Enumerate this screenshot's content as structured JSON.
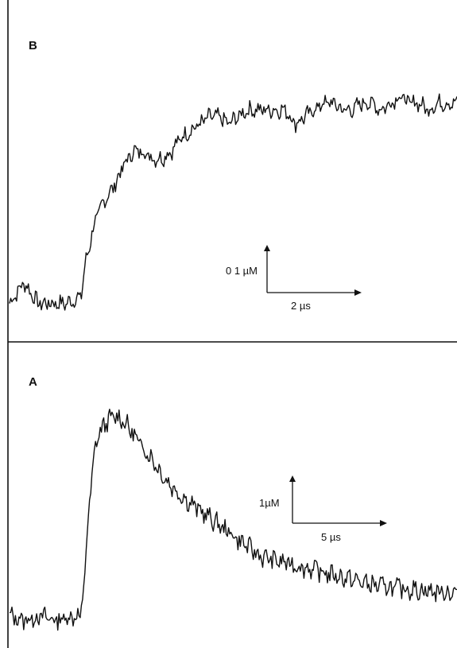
{
  "chart_data": [
    {
      "type": "line",
      "panel_label": "B",
      "xlim": [
        0,
        18.8
      ],
      "ylim": [
        -0.02,
        0.4
      ],
      "scale_bars": {
        "y": {
          "value": 0.1,
          "label": "0 1 µM"
        },
        "x": {
          "value": 2,
          "label": "2 µs"
        }
      },
      "series": [
        {
          "x": [
            0,
            0.6,
            1.2,
            1.8,
            2.4,
            3.0,
            3.2,
            3.6,
            4.0,
            4.4,
            4.8,
            5.2,
            5.6,
            6.0,
            6.4,
            6.8,
            7.2,
            7.6,
            8.0,
            8.4,
            8.8,
            9.2,
            9.6,
            10.0,
            10.4,
            10.8,
            11.2,
            11.6,
            12.0,
            12.4,
            12.8,
            13.2,
            13.6,
            14.0,
            14.4,
            14.8,
            15.2,
            15.6,
            16.0,
            16.4,
            16.8,
            17.2,
            17.6,
            18.0,
            18.4,
            18.8
          ],
          "y": [
            0.03,
            0.06,
            0.03,
            0.03,
            0.03,
            0.04,
            0.09,
            0.15,
            0.18,
            0.2,
            0.23,
            0.25,
            0.25,
            0.24,
            0.24,
            0.25,
            0.27,
            0.28,
            0.29,
            0.3,
            0.3,
            0.29,
            0.3,
            0.31,
            0.31,
            0.31,
            0.31,
            0.31,
            0.29,
            0.3,
            0.31,
            0.32,
            0.32,
            0.31,
            0.31,
            0.32,
            0.32,
            0.31,
            0.32,
            0.33,
            0.32,
            0.32,
            0.31,
            0.32,
            0.32,
            0.32
          ]
        }
      ]
    },
    {
      "type": "line",
      "panel_label": "A",
      "xlim": [
        0,
        57
      ],
      "ylim": [
        0,
        3.2
      ],
      "scale_bars": {
        "y": {
          "value": 1,
          "label": "1µM"
        },
        "x": {
          "value": 5,
          "label": "5 µs"
        }
      },
      "series": [
        {
          "x": [
            0,
            2,
            4,
            6,
            8,
            9,
            9.5,
            10,
            11,
            12,
            13,
            14,
            15,
            16,
            18,
            20,
            22,
            24,
            26,
            28,
            30,
            32,
            34,
            36,
            38,
            40,
            42,
            44,
            46,
            48,
            50,
            52,
            54,
            56,
            57
          ],
          "y": [
            0.25,
            0.2,
            0.25,
            0.2,
            0.25,
            0.25,
            0.6,
            1.5,
            2.45,
            2.65,
            2.75,
            2.75,
            2.65,
            2.5,
            2.25,
            1.95,
            1.75,
            1.6,
            1.45,
            1.3,
            1.15,
            1.0,
            0.95,
            0.9,
            0.85,
            0.8,
            0.75,
            0.7,
            0.65,
            0.62,
            0.6,
            0.58,
            0.56,
            0.55,
            0.55
          ]
        }
      ]
    }
  ]
}
